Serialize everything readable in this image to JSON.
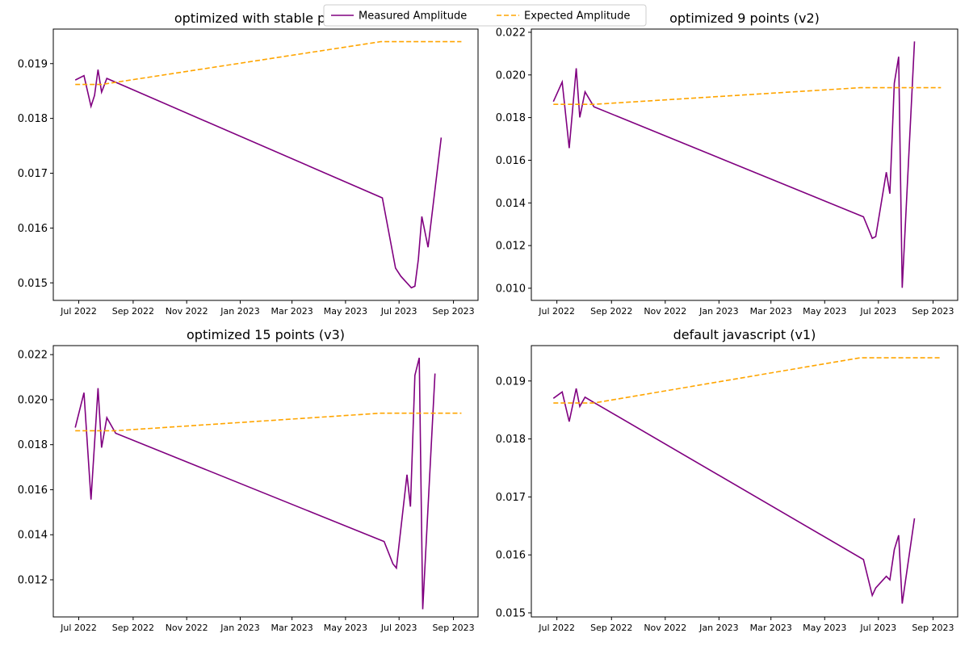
{
  "legend": {
    "entries": [
      {
        "label": "Measured Amplitude",
        "color": "#800080",
        "style": "solid"
      },
      {
        "label": "Expected Amplitude",
        "color": "#FFA500",
        "style": "dashed"
      }
    ],
    "placement": "top-center"
  },
  "chart_data": [
    {
      "type": "line",
      "title": "optimized with stable points",
      "xlabel": "",
      "ylabel": "",
      "xlim": [
        "2022-06-02",
        "2023-09-29"
      ],
      "ylim": [
        0.01468,
        0.01963
      ],
      "yticks": [
        "0.015",
        "0.016",
        "0.017",
        "0.018",
        "0.019"
      ],
      "xticks": [
        "Jul 2022",
        "Sep 2022",
        "Nov 2022",
        "Jan 2023",
        "Mar 2023",
        "May 2023",
        "Jul 2023",
        "Sep 2023"
      ],
      "grid": false,
      "series": [
        {
          "name": "Measured Amplitude",
          "color": "#800080",
          "x": [
            "2022-06-27",
            "2022-07-07",
            "2022-07-15",
            "2022-07-19",
            "2022-07-23",
            "2022-07-27",
            "2022-08-02",
            "2023-06-12",
            "2023-06-27",
            "2023-07-03",
            "2023-07-15",
            "2023-07-19",
            "2023-07-23",
            "2023-07-27",
            "2023-08-03",
            "2023-08-18"
          ],
          "y": [
            0.0187,
            0.01878,
            0.01822,
            0.01842,
            0.01889,
            0.01848,
            0.01873,
            0.01655,
            0.01527,
            0.01512,
            0.01491,
            0.01494,
            0.01543,
            0.01621,
            0.01565,
            0.01765
          ]
        },
        {
          "name": "Expected Amplitude",
          "color": "#FFA500",
          "x": [
            "2022-06-27",
            "2022-07-27",
            "2023-06-10",
            "2023-09-10"
          ],
          "y": [
            0.01862,
            0.01862,
            0.0194,
            0.0194
          ]
        }
      ]
    },
    {
      "type": "line",
      "title": "optimized 9 points (v2)",
      "xlabel": "",
      "ylabel": "",
      "xlim": [
        "2022-06-02",
        "2023-09-29"
      ],
      "ylim": [
        0.00943,
        0.02215
      ],
      "yticks": [
        "0.010",
        "0.012",
        "0.014",
        "0.016",
        "0.018",
        "0.020",
        "0.022"
      ],
      "xticks": [
        "Jul 2022",
        "Sep 2022",
        "Nov 2022",
        "Jan 2023",
        "Mar 2023",
        "May 2023",
        "Jul 2023",
        "Sep 2023"
      ],
      "grid": false,
      "series": [
        {
          "name": "Measured Amplitude",
          "color": "#800080",
          "x": [
            "2022-06-27",
            "2022-07-07",
            "2022-07-15",
            "2022-07-23",
            "2022-07-27",
            "2022-08-02",
            "2022-08-12",
            "2023-06-14",
            "2023-06-24",
            "2023-06-28",
            "2023-07-10",
            "2023-07-14",
            "2023-07-19",
            "2023-07-24",
            "2023-07-28",
            "2023-08-11"
          ],
          "y": [
            0.01875,
            0.01967,
            0.01657,
            0.02031,
            0.01801,
            0.01921,
            0.01851,
            0.01335,
            0.01234,
            0.01242,
            0.01544,
            0.01443,
            0.01961,
            0.02085,
            0.01002,
            0.02157
          ]
        },
        {
          "name": "Expected Amplitude",
          "color": "#FFA500",
          "x": [
            "2022-06-27",
            "2022-08-12",
            "2023-06-10",
            "2023-09-10"
          ],
          "y": [
            0.01862,
            0.01862,
            0.0194,
            0.0194
          ]
        }
      ]
    },
    {
      "type": "line",
      "title": "optimized 15 points (v3)",
      "xlabel": "",
      "ylabel": "",
      "xlim": [
        "2022-06-02",
        "2023-09-29"
      ],
      "ylim": [
        0.01035,
        0.0224
      ],
      "yticks": [
        "0.012",
        "0.014",
        "0.016",
        "0.018",
        "0.020",
        "0.022"
      ],
      "xticks": [
        "Jul 2022",
        "Sep 2022",
        "Nov 2022",
        "Jan 2023",
        "Mar 2023",
        "May 2023",
        "Jul 2023",
        "Sep 2023"
      ],
      "grid": false,
      "series": [
        {
          "name": "Measured Amplitude",
          "color": "#800080",
          "x": [
            "2022-06-27",
            "2022-07-07",
            "2022-07-15",
            "2022-07-23",
            "2022-07-27",
            "2022-08-02",
            "2022-08-12",
            "2023-06-14",
            "2023-06-24",
            "2023-06-28",
            "2023-07-10",
            "2023-07-14",
            "2023-07-19",
            "2023-07-24",
            "2023-07-28",
            "2023-08-11"
          ],
          "y": [
            0.01876,
            0.02031,
            0.01556,
            0.02051,
            0.01787,
            0.0192,
            0.01851,
            0.0137,
            0.01271,
            0.01252,
            0.01667,
            0.01525,
            0.02108,
            0.02186,
            0.01069,
            0.02116
          ]
        },
        {
          "name": "Expected Amplitude",
          "color": "#FFA500",
          "x": [
            "2022-06-27",
            "2022-08-12",
            "2023-06-10",
            "2023-09-10"
          ],
          "y": [
            0.01862,
            0.01862,
            0.0194,
            0.0194
          ]
        }
      ]
    },
    {
      "type": "line",
      "title": "default javascript (v1)",
      "xlabel": "",
      "ylabel": "",
      "xlim": [
        "2022-06-02",
        "2023-09-29"
      ],
      "ylim": [
        0.01493,
        0.01961
      ],
      "yticks": [
        "0.015",
        "0.016",
        "0.017",
        "0.018",
        "0.019"
      ],
      "xticks": [
        "Jul 2022",
        "Sep 2022",
        "Nov 2022",
        "Jan 2023",
        "Mar 2023",
        "May 2023",
        "Jul 2023",
        "Sep 2023"
      ],
      "grid": false,
      "series": [
        {
          "name": "Measured Amplitude",
          "color": "#800080",
          "x": [
            "2022-06-27",
            "2022-07-07",
            "2022-07-15",
            "2022-07-23",
            "2022-07-27",
            "2022-08-02",
            "2022-08-12",
            "2023-06-14",
            "2023-06-24",
            "2023-06-28",
            "2023-07-10",
            "2023-07-14",
            "2023-07-19",
            "2023-07-24",
            "2023-07-28",
            "2023-08-11"
          ],
          "y": [
            0.0187,
            0.01881,
            0.0183,
            0.01887,
            0.01856,
            0.01872,
            0.01863,
            0.01592,
            0.0153,
            0.01543,
            0.01563,
            0.01557,
            0.01609,
            0.01634,
            0.01516,
            0.01663
          ]
        },
        {
          "name": "Expected Amplitude",
          "color": "#FFA500",
          "x": [
            "2022-06-27",
            "2022-08-12",
            "2023-06-10",
            "2023-09-10"
          ],
          "y": [
            0.01862,
            0.01862,
            0.0194,
            0.0194
          ]
        }
      ]
    }
  ]
}
